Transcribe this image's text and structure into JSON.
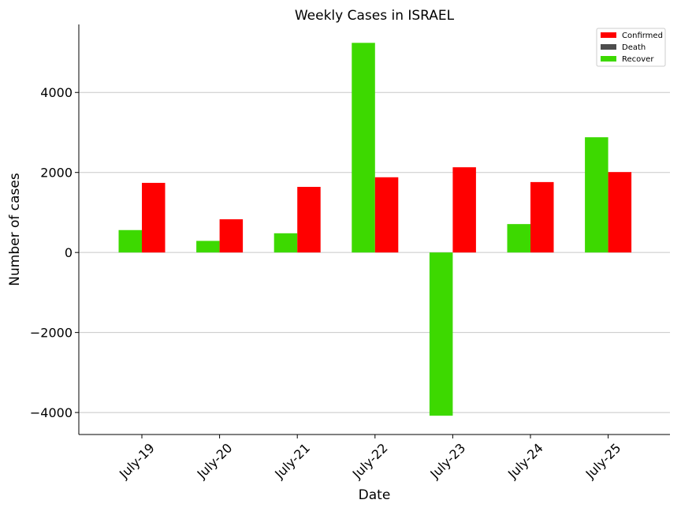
{
  "chart_data": {
    "type": "bar",
    "title": "Weekly Cases in ISRAEL",
    "xlabel": "Date",
    "ylabel": "Number of cases",
    "categories": [
      "July-19",
      "July-20",
      "July-21",
      "July-22",
      "July-23",
      "July-24",
      "July-25"
    ],
    "series": [
      {
        "name": "Recover",
        "color": "#3dd900",
        "values": [
          560,
          290,
          480,
          5240,
          -4080,
          710,
          2880
        ]
      },
      {
        "name": "Confirmed",
        "color": "#ff0000",
        "values": [
          1740,
          830,
          1640,
          1880,
          2130,
          1760,
          2010
        ]
      }
    ],
    "legend": [
      {
        "name": "Confirmed",
        "color": "#ff0000"
      },
      {
        "name": "Death",
        "color": "#4d4d4d"
      },
      {
        "name": "Recover",
        "color": "#3dd900"
      }
    ],
    "yticks": [
      -4000,
      -2000,
      0,
      2000,
      4000
    ],
    "ytick_labels": [
      "−4000",
      "−2000",
      "0",
      "2000",
      "4000"
    ],
    "ylim": [
      -4550,
      5700
    ],
    "grid": "horizontal",
    "legend_position": "top-right"
  }
}
